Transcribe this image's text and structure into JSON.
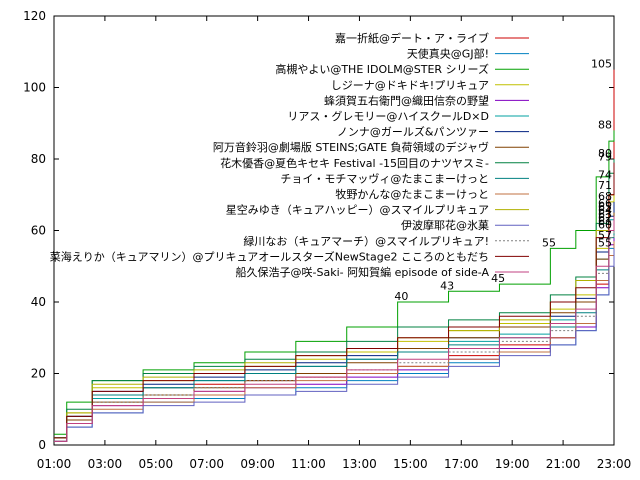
{
  "chart_data": {
    "type": "line",
    "title": "",
    "xlabel": "",
    "ylabel": "",
    "xlim": [
      "01:00",
      "23:00"
    ],
    "ylim": [
      0,
      120
    ],
    "x_ticks": [
      "01:00",
      "03:00",
      "05:00",
      "07:00",
      "09:00",
      "11:00",
      "13:00",
      "15:00",
      "17:00",
      "19:00",
      "21:00",
      "23:00"
    ],
    "y_ticks": [
      0,
      20,
      40,
      60,
      80,
      100,
      120
    ],
    "grid": false,
    "legend_position": "top-right",
    "series": [
      {
        "name": "嘉一折紙@デート・ア・ライブ",
        "color": "#cc0000",
        "x": [
          1.0,
          1.5,
          2.5,
          4.5,
          6.5,
          8.5,
          10.5,
          12.5,
          14.5,
          16.5,
          18.5,
          20.5,
          21.5,
          22.3,
          22.8,
          23.0
        ],
        "y": [
          2,
          8,
          14,
          16,
          17,
          18,
          19,
          20,
          22,
          25,
          28,
          30,
          33,
          45,
          70,
          105
        ],
        "labels": [
          [
            23.0,
            105
          ]
        ]
      },
      {
        "name": "天使真央@GJ部!",
        "color": "#0080c0",
        "x": [
          1.0,
          1.5,
          2.5,
          4.5,
          6.5,
          8.5,
          10.5,
          12.5,
          14.5,
          16.5,
          18.5,
          20.5,
          21.5,
          22.3,
          22.8,
          23.0
        ],
        "y": [
          1,
          5,
          9,
          12,
          13,
          14,
          16,
          18,
          20,
          23,
          26,
          28,
          32,
          42,
          55,
          62
        ],
        "labels": [
          [
            23.0,
            62
          ]
        ]
      },
      {
        "name": "高槻やよい@THE IDOLM@STER シリーズ",
        "color": "#00a000",
        "x": [
          1.0,
          1.5,
          2.5,
          4.5,
          6.5,
          8.5,
          10.5,
          12.5,
          14.5,
          16.5,
          18.5,
          20.5,
          21.5,
          22.3,
          22.8,
          23.0
        ],
        "y": [
          3,
          12,
          18,
          21,
          23,
          26,
          29,
          33,
          40,
          43,
          45,
          55,
          60,
          75,
          85,
          88
        ],
        "labels": [
          [
            15.0,
            40
          ],
          [
            16.8,
            43
          ],
          [
            18.8,
            45
          ],
          [
            20.8,
            55
          ],
          [
            23.0,
            88
          ]
        ]
      },
      {
        "name": "しジーナ@ドキドキ!プリキュア",
        "color": "#c0c000",
        "x": [
          1.0,
          1.5,
          2.5,
          4.5,
          6.5,
          8.5,
          10.5,
          12.5,
          14.5,
          16.5,
          18.5,
          20.5,
          21.5,
          22.3,
          22.8,
          23.0
        ],
        "y": [
          2,
          9,
          16,
          18,
          20,
          22,
          24,
          26,
          29,
          32,
          34,
          38,
          42,
          55,
          68,
          74
        ],
        "labels": [
          [
            23.0,
            74
          ]
        ]
      },
      {
        "name": "蜂須賀五右衛門@織田信奈の野望",
        "color": "#8000c0",
        "x": [
          1.0,
          1.5,
          2.5,
          4.5,
          6.5,
          8.5,
          10.5,
          12.5,
          14.5,
          16.5,
          18.5,
          20.5,
          21.5,
          22.3,
          22.8,
          23.0
        ],
        "y": [
          1,
          6,
          11,
          13,
          15,
          16,
          17,
          19,
          21,
          24,
          27,
          30,
          33,
          44,
          56,
          61
        ],
        "labels": [
          [
            23.0,
            61
          ]
        ]
      },
      {
        "name": "リアス・グレモリー@ハイスクールD×D",
        "color": "#00a0a0",
        "x": [
          1.0,
          1.5,
          2.5,
          4.5,
          6.5,
          8.5,
          10.5,
          12.5,
          14.5,
          16.5,
          18.5,
          20.5,
          21.5,
          22.3,
          22.8,
          23.0
        ],
        "y": [
          2,
          7,
          13,
          16,
          18,
          20,
          22,
          24,
          26,
          29,
          31,
          35,
          40,
          52,
          63,
          66
        ],
        "labels": [
          [
            23.0,
            66
          ]
        ]
      },
      {
        "name": "ノンナ@ガールズ&パンツァー",
        "color": "#002080",
        "x": [
          1.0,
          1.5,
          2.5,
          4.5,
          6.5,
          8.5,
          10.5,
          12.5,
          14.5,
          16.5,
          18.5,
          20.5,
          21.5,
          22.3,
          22.8,
          23.0
        ],
        "y": [
          2,
          8,
          15,
          17,
          19,
          21,
          23,
          25,
          27,
          30,
          33,
          36,
          41,
          54,
          64,
          68
        ],
        "labels": [
          [
            23.0,
            68
          ]
        ]
      },
      {
        "name": "阿万音鈴羽@劇場版 STEINS;GATE 負荷領域のデジャヴ",
        "color": "#804000",
        "x": [
          1.0,
          1.5,
          2.5,
          4.5,
          6.5,
          8.5,
          10.5,
          12.5,
          14.5,
          16.5,
          18.5,
          20.5,
          21.5,
          22.3,
          22.8,
          23.0
        ],
        "y": [
          1,
          7,
          12,
          14,
          16,
          18,
          20,
          23,
          27,
          30,
          33,
          37,
          40,
          52,
          60,
          65
        ],
        "labels": [
          [
            23.0,
            65
          ]
        ]
      },
      {
        "name": "花木優香@夏色キセキ Festival -15回目のナツヤスミ-",
        "color": "#008040",
        "x": [
          1.0,
          1.5,
          2.5,
          4.5,
          6.5,
          8.5,
          10.5,
          12.5,
          14.5,
          16.5,
          18.5,
          20.5,
          21.5,
          22.3,
          22.8,
          23.0
        ],
        "y": [
          2,
          10,
          18,
          20,
          22,
          24,
          26,
          29,
          33,
          35,
          37,
          42,
          47,
          62,
          76,
          80
        ],
        "labels": [
          [
            23.0,
            80
          ]
        ]
      },
      {
        "name": "チョイ・モチマッヴィ@たまこまーけっと",
        "color": "#008080",
        "x": [
          1.0,
          1.5,
          2.5,
          4.5,
          6.5,
          8.5,
          10.5,
          12.5,
          14.5,
          16.5,
          18.5,
          20.5,
          21.5,
          22.3,
          22.8,
          23.0
        ],
        "y": [
          2,
          8,
          14,
          16,
          18,
          20,
          22,
          24,
          26,
          28,
          30,
          33,
          37,
          49,
          58,
          63
        ],
        "labels": [
          [
            23.0,
            63
          ]
        ]
      },
      {
        "name": "牧野かんな@たまこまーけっと",
        "color": "#c07040",
        "x": [
          1.0,
          1.5,
          2.5,
          4.5,
          6.5,
          8.5,
          10.5,
          12.5,
          14.5,
          16.5,
          18.5,
          20.5,
          21.5,
          22.3,
          22.8,
          23.0
        ],
        "y": [
          1,
          6,
          10,
          12,
          14,
          16,
          18,
          20,
          22,
          24,
          26,
          30,
          34,
          46,
          53,
          57
        ],
        "labels": [
          [
            23.0,
            57
          ]
        ]
      },
      {
        "name": "星空みゆき（キュアハッピー）@スマイルプリキュア",
        "color": "#b0b000",
        "x": [
          1.0,
          1.5,
          2.5,
          4.5,
          6.5,
          8.5,
          10.5,
          12.5,
          14.5,
          16.5,
          18.5,
          20.5,
          21.5,
          22.3,
          22.8,
          23.0
        ],
        "y": [
          2,
          9,
          17,
          19,
          21,
          23,
          25,
          27,
          30,
          32,
          35,
          40,
          46,
          60,
          70,
          71
        ],
        "labels": [
          [
            23.0,
            71
          ]
        ]
      },
      {
        "name": "伊波摩耶花@氷菓",
        "color": "#6060c0",
        "x": [
          1.0,
          1.5,
          2.5,
          4.5,
          6.5,
          8.5,
          10.5,
          12.5,
          14.5,
          16.5,
          18.5,
          20.5,
          21.5,
          22.3,
          22.8,
          23.0
        ],
        "y": [
          1,
          5,
          9,
          11,
          12,
          14,
          15,
          17,
          19,
          22,
          25,
          28,
          32,
          42,
          50,
          55
        ],
        "labels": [
          [
            23.0,
            55
          ]
        ]
      },
      {
        "name": "緑川なお（キュアマーチ）@スマイルプリキュア!",
        "color": "#808080",
        "x": [
          1.0,
          1.5,
          2.5,
          4.5,
          6.5,
          8.5,
          10.5,
          12.5,
          14.5,
          16.5,
          18.5,
          20.5,
          21.5,
          22.3,
          22.8,
          23.0
        ],
        "y": [
          1,
          6,
          12,
          14,
          16,
          18,
          19,
          21,
          23,
          26,
          29,
          32,
          36,
          48,
          58,
          60
        ],
        "dashed": true,
        "labels": [
          [
            23.0,
            60
          ]
        ]
      },
      {
        "name": "菜海えりか（キュアマリン）@プリキュアオールスターズNewStage2 こころのともだち",
        "color": "#800000",
        "x": [
          1.0,
          1.5,
          2.5,
          4.5,
          6.5,
          8.5,
          10.5,
          12.5,
          14.5,
          16.5,
          18.5,
          20.5,
          21.5,
          22.3,
          22.8,
          23.0
        ],
        "y": [
          2,
          8,
          15,
          18,
          20,
          22,
          25,
          27,
          30,
          33,
          36,
          40,
          44,
          58,
          70,
          79
        ],
        "labels": [
          [
            23.0,
            79
          ]
        ]
      },
      {
        "name": "船久保浩子@咲-Saki- 阿知賀編 episode of side-A",
        "color": "#c04080",
        "x": [
          1.0,
          1.5,
          2.5,
          4.5,
          6.5,
          8.5,
          10.5,
          12.5,
          14.5,
          16.5,
          18.5,
          20.5,
          21.5,
          22.3,
          22.8,
          23.0
        ],
        "y": [
          1,
          6,
          11,
          13,
          15,
          17,
          19,
          21,
          24,
          27,
          30,
          34,
          38,
          50,
          60,
          64
        ],
        "labels": [
          [
            23.0,
            64
          ]
        ]
      }
    ]
  }
}
